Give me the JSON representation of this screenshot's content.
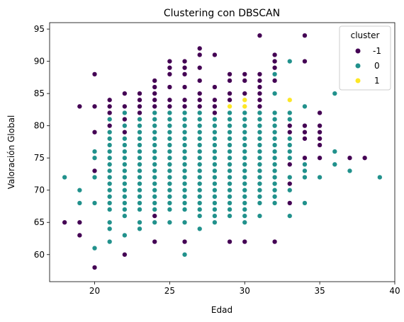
{
  "chart_data": {
    "type": "scatter",
    "title": "Clustering con DBSCAN",
    "xlabel": "Edad",
    "ylabel": "Valoración Global",
    "xlim": [
      17.0,
      40.0
    ],
    "ylim": [
      55.8,
      96.0
    ],
    "xticks": [
      20,
      25,
      30,
      35,
      40
    ],
    "yticks": [
      60,
      65,
      70,
      75,
      80,
      85,
      90,
      95
    ],
    "grid": false,
    "legend": {
      "title": "cluster",
      "placement": "top-right"
    },
    "series": [
      {
        "name": "-1",
        "color": "#440154",
        "points": [
          [
            18,
            65
          ],
          [
            19,
            83
          ],
          [
            19,
            65
          ],
          [
            19,
            63
          ],
          [
            20,
            88
          ],
          [
            20,
            83
          ],
          [
            20,
            79
          ],
          [
            20,
            73
          ],
          [
            20,
            58
          ],
          [
            21,
            84
          ],
          [
            21,
            83
          ],
          [
            21,
            82
          ],
          [
            21,
            80
          ],
          [
            22,
            85
          ],
          [
            22,
            83
          ],
          [
            22,
            81
          ],
          [
            22,
            79
          ],
          [
            22,
            60
          ],
          [
            23,
            85
          ],
          [
            23,
            84
          ],
          [
            23,
            83
          ],
          [
            23,
            82
          ],
          [
            24,
            87
          ],
          [
            24,
            86
          ],
          [
            24,
            85
          ],
          [
            24,
            84
          ],
          [
            24,
            83
          ],
          [
            24,
            66
          ],
          [
            24,
            62
          ],
          [
            25,
            90
          ],
          [
            25,
            89
          ],
          [
            25,
            88
          ],
          [
            25,
            86
          ],
          [
            25,
            84
          ],
          [
            25,
            83
          ],
          [
            26,
            90
          ],
          [
            26,
            89
          ],
          [
            26,
            88
          ],
          [
            26,
            86
          ],
          [
            26,
            84
          ],
          [
            26,
            83
          ],
          [
            26,
            62
          ],
          [
            27,
            92
          ],
          [
            27,
            91
          ],
          [
            27,
            89
          ],
          [
            27,
            87
          ],
          [
            27,
            85
          ],
          [
            27,
            84
          ],
          [
            27,
            83
          ],
          [
            28,
            91
          ],
          [
            28,
            86
          ],
          [
            28,
            84
          ],
          [
            28,
            83
          ],
          [
            28,
            82
          ],
          [
            29,
            88
          ],
          [
            29,
            87
          ],
          [
            29,
            85
          ],
          [
            29,
            84
          ],
          [
            29,
            62
          ],
          [
            30,
            88
          ],
          [
            30,
            87
          ],
          [
            30,
            85
          ],
          [
            30,
            84
          ],
          [
            30,
            83
          ],
          [
            30,
            62
          ],
          [
            31,
            94
          ],
          [
            31,
            88
          ],
          [
            31,
            87
          ],
          [
            31,
            86
          ],
          [
            31,
            85
          ],
          [
            31,
            84
          ],
          [
            31,
            83
          ],
          [
            31,
            82
          ],
          [
            32,
            91
          ],
          [
            32,
            90
          ],
          [
            32,
            89
          ],
          [
            32,
            88
          ],
          [
            32,
            87
          ],
          [
            32,
            62
          ],
          [
            33,
            84
          ],
          [
            33,
            80
          ],
          [
            33,
            79
          ],
          [
            33,
            74
          ],
          [
            33,
            71
          ],
          [
            33,
            68
          ],
          [
            34,
            94
          ],
          [
            34,
            90
          ],
          [
            34,
            80
          ],
          [
            34,
            79
          ],
          [
            34,
            78
          ],
          [
            34,
            75
          ],
          [
            35,
            82
          ],
          [
            35,
            80
          ],
          [
            35,
            79
          ],
          [
            35,
            78
          ],
          [
            35,
            77
          ],
          [
            35,
            75
          ],
          [
            37,
            75
          ],
          [
            38,
            75
          ]
        ]
      },
      {
        "name": "0",
        "color": "#21918c",
        "points": [
          [
            18,
            72
          ],
          [
            19,
            70
          ],
          [
            19,
            68
          ],
          [
            20,
            76
          ],
          [
            20,
            75
          ],
          [
            20,
            72
          ],
          [
            20,
            68
          ],
          [
            20,
            61
          ],
          [
            21,
            81
          ],
          [
            21,
            79
          ],
          [
            21,
            78
          ],
          [
            21,
            77
          ],
          [
            21,
            76
          ],
          [
            21,
            75
          ],
          [
            21,
            74
          ],
          [
            21,
            73
          ],
          [
            21,
            72
          ],
          [
            21,
            71
          ],
          [
            21,
            70
          ],
          [
            21,
            69
          ],
          [
            21,
            68
          ],
          [
            21,
            67
          ],
          [
            21,
            65
          ],
          [
            21,
            64
          ],
          [
            21,
            62
          ],
          [
            22,
            82
          ],
          [
            22,
            80
          ],
          [
            22,
            78
          ],
          [
            22,
            77
          ],
          [
            22,
            76
          ],
          [
            22,
            75
          ],
          [
            22,
            74
          ],
          [
            22,
            73
          ],
          [
            22,
            72
          ],
          [
            22,
            71
          ],
          [
            22,
            70
          ],
          [
            22,
            69
          ],
          [
            22,
            68
          ],
          [
            22,
            67
          ],
          [
            22,
            66
          ],
          [
            22,
            63
          ],
          [
            23,
            81
          ],
          [
            23,
            80
          ],
          [
            23,
            79
          ],
          [
            23,
            78
          ],
          [
            23,
            77
          ],
          [
            23,
            76
          ],
          [
            23,
            75
          ],
          [
            23,
            74
          ],
          [
            23,
            73
          ],
          [
            23,
            72
          ],
          [
            23,
            71
          ],
          [
            23,
            70
          ],
          [
            23,
            69
          ],
          [
            23,
            68
          ],
          [
            23,
            67
          ],
          [
            23,
            65
          ],
          [
            23,
            64
          ],
          [
            24,
            82
          ],
          [
            24,
            81
          ],
          [
            24,
            80
          ],
          [
            24,
            79
          ],
          [
            24,
            78
          ],
          [
            24,
            77
          ],
          [
            24,
            76
          ],
          [
            24,
            75
          ],
          [
            24,
            74
          ],
          [
            24,
            73
          ],
          [
            24,
            72
          ],
          [
            24,
            71
          ],
          [
            24,
            70
          ],
          [
            24,
            69
          ],
          [
            24,
            68
          ],
          [
            24,
            67
          ],
          [
            24,
            65
          ],
          [
            25,
            82
          ],
          [
            25,
            81
          ],
          [
            25,
            80
          ],
          [
            25,
            79
          ],
          [
            25,
            78
          ],
          [
            25,
            77
          ],
          [
            25,
            76
          ],
          [
            25,
            75
          ],
          [
            25,
            74
          ],
          [
            25,
            73
          ],
          [
            25,
            72
          ],
          [
            25,
            71
          ],
          [
            25,
            70
          ],
          [
            25,
            69
          ],
          [
            25,
            68
          ],
          [
            25,
            67
          ],
          [
            25,
            65
          ],
          [
            26,
            82
          ],
          [
            26,
            81
          ],
          [
            26,
            80
          ],
          [
            26,
            79
          ],
          [
            26,
            78
          ],
          [
            26,
            77
          ],
          [
            26,
            76
          ],
          [
            26,
            75
          ],
          [
            26,
            74
          ],
          [
            26,
            73
          ],
          [
            26,
            72
          ],
          [
            26,
            71
          ],
          [
            26,
            70
          ],
          [
            26,
            69
          ],
          [
            26,
            68
          ],
          [
            26,
            67
          ],
          [
            26,
            65
          ],
          [
            26,
            60
          ],
          [
            27,
            82
          ],
          [
            27,
            81
          ],
          [
            27,
            80
          ],
          [
            27,
            79
          ],
          [
            27,
            78
          ],
          [
            27,
            77
          ],
          [
            27,
            76
          ],
          [
            27,
            75
          ],
          [
            27,
            74
          ],
          [
            27,
            73
          ],
          [
            27,
            72
          ],
          [
            27,
            71
          ],
          [
            27,
            70
          ],
          [
            27,
            69
          ],
          [
            27,
            68
          ],
          [
            27,
            67
          ],
          [
            27,
            66
          ],
          [
            27,
            64
          ],
          [
            28,
            81
          ],
          [
            28,
            80
          ],
          [
            28,
            79
          ],
          [
            28,
            78
          ],
          [
            28,
            77
          ],
          [
            28,
            76
          ],
          [
            28,
            75
          ],
          [
            28,
            74
          ],
          [
            28,
            73
          ],
          [
            28,
            72
          ],
          [
            28,
            71
          ],
          [
            28,
            70
          ],
          [
            28,
            69
          ],
          [
            28,
            68
          ],
          [
            28,
            67
          ],
          [
            28,
            66
          ],
          [
            28,
            65
          ],
          [
            29,
            83
          ],
          [
            29,
            82
          ],
          [
            29,
            81
          ],
          [
            29,
            80
          ],
          [
            29,
            79
          ],
          [
            29,
            78
          ],
          [
            29,
            77
          ],
          [
            29,
            76
          ],
          [
            29,
            75
          ],
          [
            29,
            74
          ],
          [
            29,
            73
          ],
          [
            29,
            72
          ],
          [
            29,
            71
          ],
          [
            29,
            70
          ],
          [
            29,
            69
          ],
          [
            29,
            68
          ],
          [
            29,
            67
          ],
          [
            29,
            66
          ],
          [
            30,
            82
          ],
          [
            30,
            81
          ],
          [
            30,
            80
          ],
          [
            30,
            79
          ],
          [
            30,
            78
          ],
          [
            30,
            77
          ],
          [
            30,
            76
          ],
          [
            30,
            75
          ],
          [
            30,
            74
          ],
          [
            30,
            73
          ],
          [
            30,
            72
          ],
          [
            30,
            71
          ],
          [
            30,
            70
          ],
          [
            30,
            69
          ],
          [
            30,
            68
          ],
          [
            30,
            67
          ],
          [
            30,
            66
          ],
          [
            30,
            65
          ],
          [
            31,
            82
          ],
          [
            31,
            81
          ],
          [
            31,
            80
          ],
          [
            31,
            79
          ],
          [
            31,
            78
          ],
          [
            31,
            77
          ],
          [
            31,
            76
          ],
          [
            31,
            75
          ],
          [
            31,
            74
          ],
          [
            31,
            73
          ],
          [
            31,
            72
          ],
          [
            31,
            71
          ],
          [
            31,
            70
          ],
          [
            31,
            69
          ],
          [
            31,
            68
          ],
          [
            31,
            66
          ],
          [
            32,
            88
          ],
          [
            32,
            85
          ],
          [
            32,
            82
          ],
          [
            32,
            81
          ],
          [
            32,
            80
          ],
          [
            32,
            79
          ],
          [
            32,
            78
          ],
          [
            32,
            77
          ],
          [
            32,
            76
          ],
          [
            32,
            75
          ],
          [
            32,
            74
          ],
          [
            32,
            73
          ],
          [
            32,
            72
          ],
          [
            32,
            71
          ],
          [
            32,
            70
          ],
          [
            32,
            69
          ],
          [
            32,
            68
          ],
          [
            33,
            90
          ],
          [
            33,
            82
          ],
          [
            33,
            81
          ],
          [
            33,
            78
          ],
          [
            33,
            77
          ],
          [
            33,
            76
          ],
          [
            33,
            75
          ],
          [
            33,
            72
          ],
          [
            33,
            70
          ],
          [
            33,
            66
          ],
          [
            34,
            83
          ],
          [
            34,
            74
          ],
          [
            34,
            73
          ],
          [
            34,
            72
          ],
          [
            34,
            68
          ],
          [
            35,
            72
          ],
          [
            36,
            85
          ],
          [
            36,
            76
          ],
          [
            36,
            74
          ],
          [
            37,
            73
          ],
          [
            39,
            72
          ]
        ]
      },
      {
        "name": "1",
        "color": "#fde725",
        "points": [
          [
            29,
            83
          ],
          [
            30,
            84
          ],
          [
            30,
            83
          ],
          [
            33,
            84
          ]
        ]
      }
    ]
  }
}
